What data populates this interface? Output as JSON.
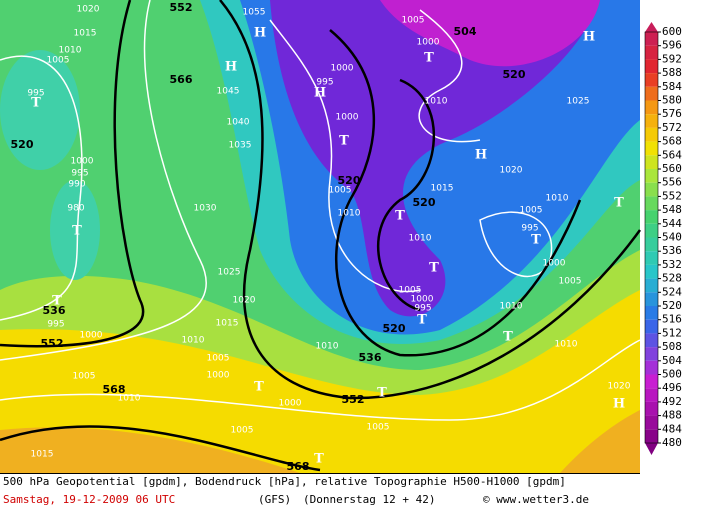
{
  "colorbar": {
    "ticks": [
      600,
      596,
      592,
      588,
      584,
      580,
      576,
      572,
      568,
      564,
      560,
      556,
      552,
      548,
      544,
      540,
      536,
      532,
      528,
      524,
      520,
      516,
      512,
      508,
      504,
      500,
      496,
      492,
      488,
      484,
      480
    ]
  },
  "map_labels": [
    "552",
    "1020",
    "1015",
    "1010",
    "1005",
    "995",
    "T",
    "566",
    "H",
    "H",
    "1045",
    "1040",
    "1035",
    "1055",
    "1000",
    "995",
    "H",
    "1000",
    "T",
    "1005",
    "520",
    "1010",
    "T",
    "520",
    "1015",
    "1010",
    "T",
    "1005",
    "1000",
    "995",
    "T",
    "520",
    "504",
    "T",
    "1000",
    "1005",
    "1010",
    "H",
    "520",
    "1025",
    "1020",
    "H",
    "1010",
    "1005",
    "995",
    "T",
    "1000",
    "1005",
    "1010",
    "T",
    "T",
    "1010",
    "1020",
    "H",
    "520",
    "1000",
    "995",
    "990",
    "980",
    "T",
    "1030",
    "1025",
    "1020",
    "1015",
    "1010",
    "1005",
    "1000",
    "536",
    "995",
    "T",
    "552",
    "1000",
    "1005",
    "1010",
    "568",
    "T",
    "1000",
    "552",
    "T",
    "T",
    "568",
    "1005",
    "1005",
    "1015",
    "1010",
    "536"
  ],
  "footer": {
    "line1": "500 hPa Geopotential [gpdm], Bodendruck [hPa], relative Topographie H500-H1000 [gpdm]",
    "date": "Samstag, 19-12-2009  06 UTC",
    "model": "(GFS)",
    "run": "(Donnerstag 12 + 42)",
    "copyright": "© www.wetter3.de"
  }
}
